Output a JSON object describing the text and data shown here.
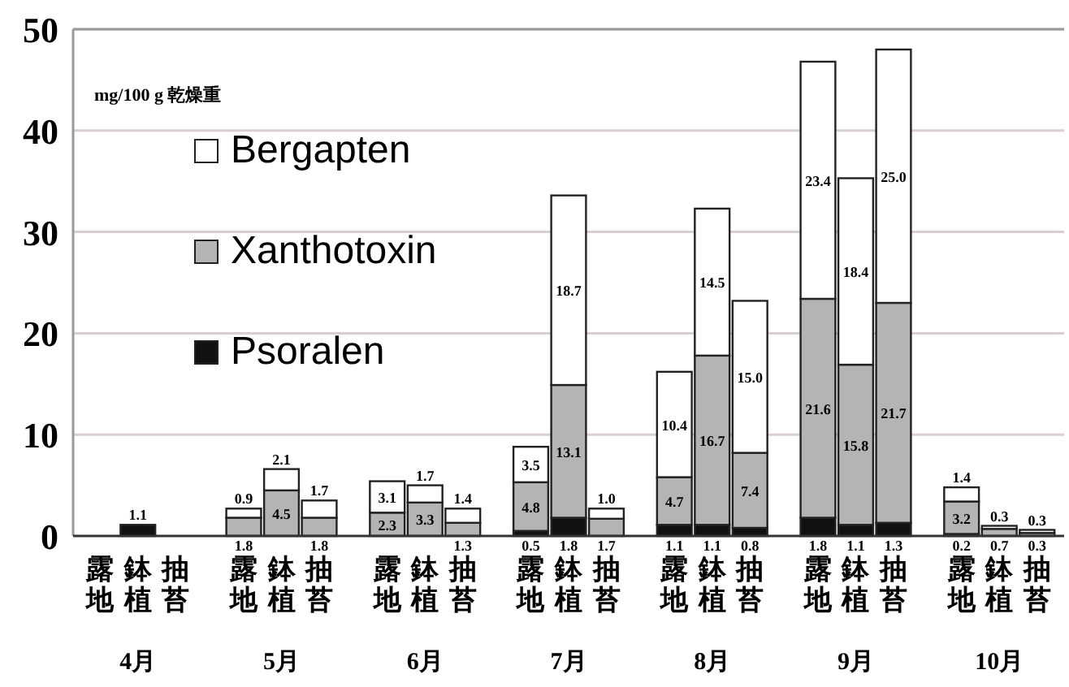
{
  "chart_data": {
    "type": "bar",
    "stacked": true,
    "ylabel": "mg/100 g 乾燥重",
    "categories": [
      "露地",
      "鉢植",
      "抽苔",
      "露地",
      "鉢植",
      "抽苔",
      "露地",
      "鉢植",
      "抽苔",
      "露地",
      "鉢植",
      "抽苔",
      "露地",
      "鉢植",
      "抽苔",
      "露地",
      "鉢植",
      "抽苔",
      "露地",
      "鉢植",
      "抽苔"
    ],
    "annotations": [
      "4月",
      "5月",
      "6月",
      "7月",
      "8月",
      "9月",
      "10月"
    ],
    "series": [
      {
        "name": "Psoralen",
        "color": "#111111",
        "values": [
          null,
          1.1,
          null,
          null,
          null,
          null,
          null,
          null,
          null,
          0.5,
          1.8,
          null,
          1.1,
          1.1,
          0.8,
          1.8,
          1.1,
          1.3,
          0.2,
          null,
          null
        ],
        "value_labels": [
          null,
          "1.1",
          null,
          null,
          null,
          null,
          null,
          null,
          null,
          "0.5",
          "1.8",
          null,
          "1.1",
          "1.1",
          "0.8",
          "1.8",
          "1.1",
          "1.3",
          "0.2",
          null,
          null
        ]
      },
      {
        "name": "Xanthotoxin",
        "color": "#b4b4b4",
        "values": [
          null,
          null,
          null,
          1.8,
          4.5,
          1.8,
          2.3,
          3.3,
          1.3,
          4.8,
          13.1,
          1.7,
          4.7,
          16.7,
          7.4,
          21.6,
          15.8,
          21.7,
          3.2,
          0.7,
          0.3
        ],
        "value_labels": [
          null,
          null,
          null,
          "1.8",
          "4.5",
          "1.8",
          "2.3",
          "3.3",
          "1.3",
          "4.8",
          "13.1",
          "1.7",
          "4.7",
          "16.7",
          "7.4",
          "21.6",
          "15.8",
          "21.7",
          "3.2",
          "0.7",
          "0.3"
        ]
      },
      {
        "name": "Bergapten",
        "color": "#ffffff",
        "values": [
          null,
          null,
          null,
          0.9,
          2.1,
          1.7,
          3.1,
          1.7,
          1.4,
          3.5,
          18.7,
          1.0,
          10.4,
          14.5,
          15.0,
          23.4,
          18.4,
          25.0,
          1.4,
          0.3,
          0.3
        ],
        "value_labels": [
          null,
          null,
          null,
          "0.9",
          "2.1",
          "1.7",
          "3.1",
          "1.7",
          "1.4",
          "3.5",
          "18.7",
          "1.0",
          "10.4",
          "14.5",
          "15.0",
          "23.4",
          "18.4",
          "25.0",
          "1.4",
          "0.3",
          "0.3"
        ]
      }
    ],
    "ylim": [
      0,
      50
    ],
    "yticks": [
      0,
      10,
      20,
      30,
      40,
      50
    ],
    "grid": "y",
    "legend": "top left"
  }
}
